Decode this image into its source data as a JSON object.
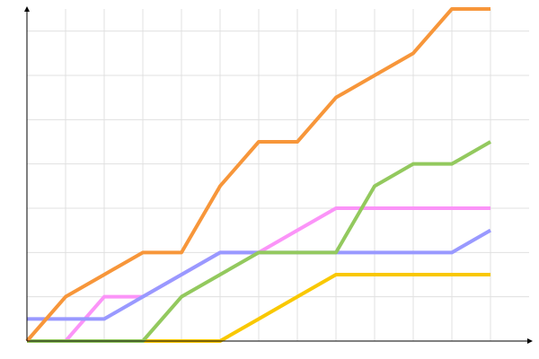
{
  "chart_data": {
    "type": "line",
    "x": [
      0,
      1,
      2,
      3,
      4,
      5,
      6,
      7,
      8,
      9,
      10,
      11,
      12
    ],
    "xlim": [
      0,
      13
    ],
    "xticks": [
      1,
      2,
      3,
      4,
      5,
      6,
      7,
      8,
      9,
      10,
      11,
      12
    ],
    "ylim": [
      0,
      7.5
    ],
    "yticks": [
      1,
      2,
      3,
      4,
      5,
      6,
      7
    ],
    "grid": true,
    "series": [
      {
        "color": "#fb94f8",
        "values": [
          0,
          0,
          1,
          1,
          1.5,
          2,
          2,
          2.5,
          3,
          3,
          3,
          3,
          3
        ]
      },
      {
        "color": "#9999ff",
        "values": [
          0.5,
          0.5,
          0.5,
          1,
          1.5,
          2,
          2,
          2,
          2,
          2,
          2,
          2,
          2.5
        ]
      },
      {
        "color": "#f9c800",
        "values": [
          0,
          0,
          0,
          0,
          0,
          0,
          0.5,
          1,
          1.5,
          1.5,
          1.5,
          1.5,
          1.5
        ]
      },
      {
        "color": "#93c95e",
        "values": [
          0,
          0,
          0,
          0,
          1,
          1.5,
          2,
          2,
          2,
          3.5,
          4,
          4,
          4.5
        ]
      },
      {
        "color": "#f7963a",
        "values": [
          0,
          1,
          1.5,
          2,
          2,
          3.5,
          4.5,
          4.5,
          5.5,
          6,
          6.5,
          7.5,
          7.5
        ]
      }
    ]
  }
}
